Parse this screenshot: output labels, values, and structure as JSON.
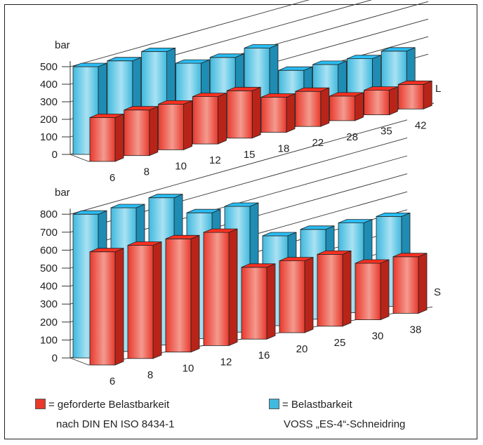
{
  "chart_data": [
    {
      "type": "bar",
      "ylabel": "bar",
      "series_axis_label": "L",
      "ylim": [
        0,
        500
      ],
      "yticks": [
        0,
        100,
        200,
        300,
        400,
        500
      ],
      "categories": [
        "6",
        "8",
        "10",
        "12",
        "15",
        "18",
        "22",
        "28",
        "35",
        "42"
      ],
      "series": [
        {
          "name": "Belastbarkeit VOSS „ES-4“-Schneidring",
          "color": "#3fb9de",
          "values": [
            500,
            500,
            520,
            420,
            420,
            440,
            280,
            280,
            280,
            290
          ]
        },
        {
          "name": "geforderte Belastbarkeit nach DIN EN ISO 8434-1",
          "color": "#e8392c",
          "values": [
            250,
            260,
            260,
            270,
            270,
            200,
            200,
            140,
            140,
            140
          ]
        }
      ]
    },
    {
      "type": "bar",
      "ylabel": "bar",
      "series_axis_label": "S",
      "ylim": [
        0,
        800
      ],
      "yticks": [
        0,
        100,
        200,
        300,
        400,
        500,
        600,
        700,
        800
      ],
      "categories": [
        "6",
        "8",
        "10",
        "12",
        "16",
        "20",
        "25",
        "30",
        "38"
      ],
      "series": [
        {
          "name": "Belastbarkeit VOSS „ES-4“-Schneidring",
          "color": "#3fb9de",
          "values": [
            800,
            800,
            820,
            700,
            700,
            500,
            500,
            500,
            500
          ]
        },
        {
          "name": "geforderte Belastbarkeit nach DIN EN ISO 8434-1",
          "color": "#e8392c",
          "values": [
            630,
            630,
            630,
            630,
            400,
            400,
            400,
            315,
            315
          ]
        }
      ]
    }
  ],
  "legend": {
    "red_line1": "= geforderte Belastbarkeit",
    "red_line2": "nach DIN EN ISO 8434-1",
    "blue_line1": "= Belastbarkeit",
    "blue_line2": "VOSS „ES-4“-Schneidring"
  },
  "colors": {
    "blue": "#3fb9de",
    "blue_dark": "#1f8cb4",
    "red": "#e8392c",
    "red_dark": "#b92419"
  }
}
